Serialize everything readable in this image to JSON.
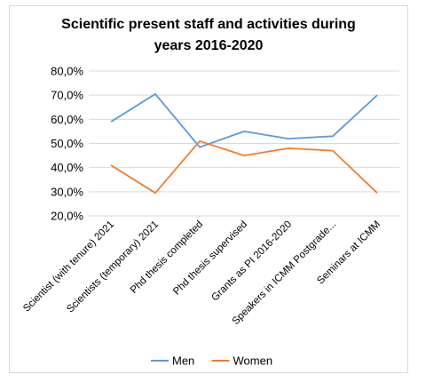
{
  "chart_data": {
    "type": "line",
    "title_line1": "Scientific present staff and activities during",
    "title_line2": "years 2016-2020",
    "categories": [
      "Scientist (with tenure)  2021",
      "Scientists (temporary) 2021",
      "Phd thesis completed",
      "Phd thesis supervised",
      "Grants as PI 2016-2020",
      "Speakers in ICMM Postgrade...",
      "Seminars at ICMM"
    ],
    "series": [
      {
        "name": "Men",
        "color": "#5b9bd5",
        "values": [
          59,
          70.5,
          48.5,
          55,
          52,
          53,
          70
        ]
      },
      {
        "name": "Women",
        "color": "#ed7d31",
        "values": [
          41,
          29.5,
          51,
          45,
          48,
          47,
          29.5
        ]
      }
    ],
    "ylim": [
      20,
      80
    ],
    "yticks": [
      "80,0%",
      "70,0%",
      "60,0%",
      "50,0%",
      "40,0%",
      "30,0%",
      "20,0%"
    ],
    "grid": true,
    "legend_position": "bottom"
  }
}
